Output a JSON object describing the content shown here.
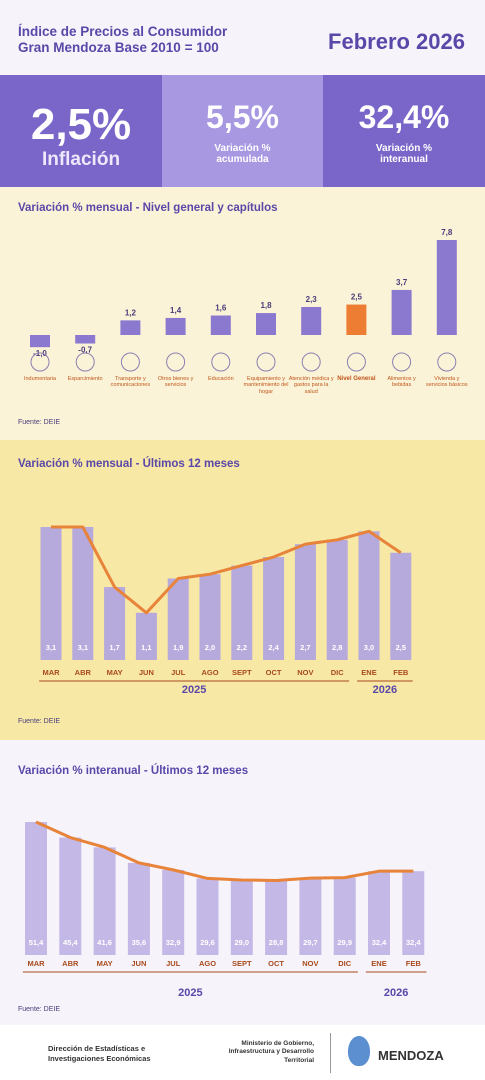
{
  "header": {
    "title_line1": "Índice de Precios al Consumidor",
    "title_line2": "Gran Mendoza Base 2010 = 100",
    "period": "Febrero 2026"
  },
  "kpis": [
    {
      "value": "2,5%",
      "label": "Inflación"
    },
    {
      "value": "5,5%",
      "label": "Variación % acumulada"
    },
    {
      "value": "32,4%",
      "label": "Variación % interanual"
    }
  ],
  "chart_data": [
    {
      "type": "bar",
      "title": "Variación % mensual - Nivel general y capítulos",
      "categories": [
        "Indumentaria",
        "Esparcimiento",
        "Transporte y comunicaciones",
        "Otros bienes y servicios",
        "Educación",
        "Equipamiento y mantenimiento del hogar",
        "Atención médica y gastos para la salud",
        "Nivel General",
        "Alimentos y bebidas",
        "Vivienda y servicios básicos"
      ],
      "values": [
        -1.0,
        -0.7,
        1.2,
        1.4,
        1.6,
        1.8,
        2.3,
        2.5,
        3.7,
        7.8
      ],
      "value_labels": [
        "-1,0",
        "-0,7",
        "1,2",
        "1,4",
        "1,6",
        "1,8",
        "2,3",
        "2,5",
        "3,7",
        "7,8"
      ],
      "colors": [
        "#8b78cf",
        "#8b78cf",
        "#8b78cf",
        "#8b78cf",
        "#8b78cf",
        "#8b78cf",
        "#8b78cf",
        "#ee7d34",
        "#8b78cf",
        "#8b78cf"
      ],
      "source": "Fuente: DEIE"
    },
    {
      "type": "bar-line",
      "title": "Variación % mensual - Últimos 12 meses",
      "groups": [
        {
          "label": "2025",
          "categories": [
            "MAR",
            "ABR",
            "MAY",
            "JUN",
            "JUL",
            "AGO",
            "SEPT",
            "OCT",
            "NOV",
            "DIC"
          ]
        },
        {
          "label": "2026",
          "categories": [
            "ENE",
            "FEB"
          ]
        }
      ],
      "values": [
        3.1,
        3.1,
        1.7,
        1.1,
        1.9,
        2.0,
        2.2,
        2.4,
        2.7,
        2.8,
        3.0,
        2.5
      ],
      "value_labels": [
        "3,1",
        "3,1",
        "1,7",
        "1,1",
        "1,9",
        "2,0",
        "2,2",
        "2,4",
        "2,7",
        "2,8",
        "3,0",
        "2,5"
      ],
      "color": "#b6a9dc",
      "line_color": "#e8833a",
      "source": "Fuente: DEIE"
    },
    {
      "type": "bar-line",
      "title": "Variación % interanual - Últimos 12 meses",
      "groups": [
        {
          "label": "2025",
          "categories": [
            "MAR",
            "ABR",
            "MAY",
            "JUN",
            "JUL",
            "AGO",
            "SEPT",
            "OCT",
            "NOV",
            "DIC"
          ]
        },
        {
          "label": "2026",
          "categories": [
            "ENE",
            "FEB"
          ]
        }
      ],
      "values": [
        51.4,
        45.4,
        41.6,
        35.6,
        32.9,
        29.6,
        29.0,
        28.8,
        29.7,
        29.9,
        32.4,
        32.4
      ],
      "value_labels": [
        "51,4",
        "45,4",
        "41,6",
        "35,6",
        "32,9",
        "29,6",
        "29,0",
        "28,8",
        "29,7",
        "29,9",
        "32,4",
        "32,4"
      ],
      "color": "#c4b9e6",
      "line_color": "#e8833a",
      "source": "Fuente: DEIE"
    }
  ],
  "footer": {
    "dept": "Dirección de Estadísticas e Investigaciones Económicas",
    "ministry": "Ministerio de Gobierno, Infraestructura y Desarrollo Territorial",
    "province": "MENDOZA"
  }
}
